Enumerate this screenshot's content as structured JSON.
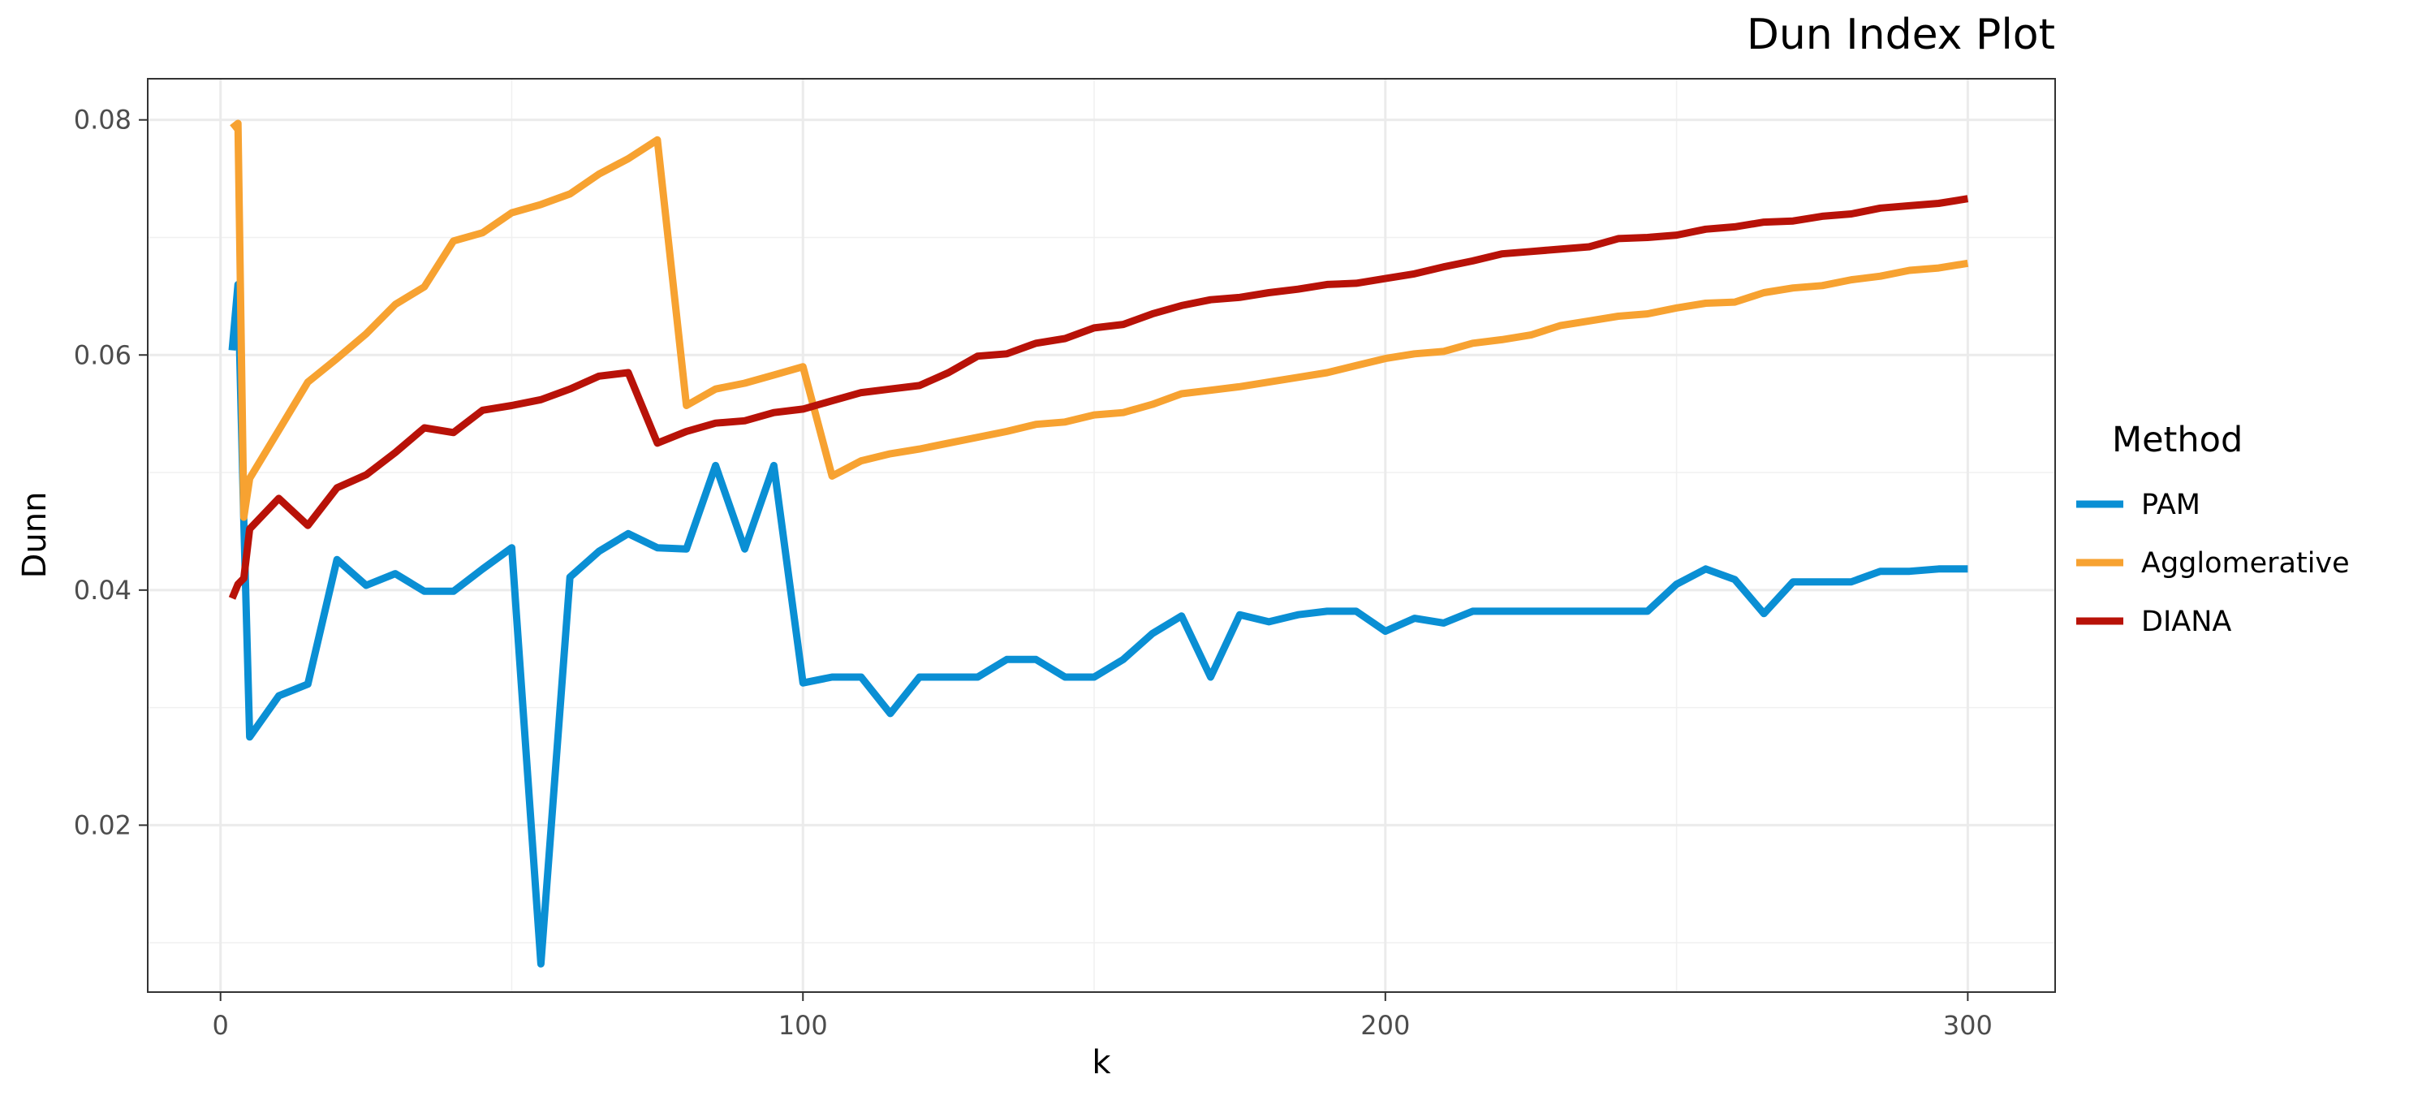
{
  "chart_data": {
    "type": "line",
    "title": "Dun Index Plot",
    "xlabel": "k",
    "ylabel": "Dunn",
    "xlim": [
      -12.5,
      315
    ],
    "ylim": [
      0.0058,
      0.0835
    ],
    "x_ticks": [
      0,
      100,
      200,
      300
    ],
    "x_tick_labels": [
      "0",
      "100",
      "200",
      "300"
    ],
    "y_ticks": [
      0.02,
      0.04,
      0.06,
      0.08
    ],
    "y_tick_labels": [
      "0.02",
      "0.04",
      "0.06",
      "0.08"
    ],
    "grid": true,
    "legend": {
      "title": "Method",
      "position": "right"
    },
    "series": [
      {
        "name": "PAM",
        "color": "#0a8fd4",
        "x": [
          2,
          3,
          4,
          5,
          10,
          15,
          20,
          25,
          30,
          35,
          40,
          45,
          50,
          55,
          60,
          65,
          70,
          75,
          80,
          85,
          90,
          95,
          100,
          105,
          110,
          115,
          120,
          125,
          130,
          135,
          140,
          145,
          150,
          155,
          160,
          165,
          170,
          175,
          180,
          185,
          190,
          195,
          200,
          205,
          210,
          215,
          220,
          225,
          230,
          235,
          240,
          245,
          250,
          255,
          260,
          265,
          270,
          275,
          280,
          285,
          290,
          295,
          300
        ],
        "y": [
          0.0604,
          0.066,
          0.0458,
          0.0275,
          0.031,
          0.032,
          0.0426,
          0.0404,
          0.0414,
          0.0399,
          0.0399,
          0.0418,
          0.0436,
          0.0082,
          0.0411,
          0.0433,
          0.0448,
          0.0436,
          0.0435,
          0.0506,
          0.0435,
          0.0506,
          0.0321,
          0.0326,
          0.0326,
          0.0295,
          0.0326,
          0.0326,
          0.0326,
          0.0341,
          0.0341,
          0.0326,
          0.0326,
          0.0341,
          0.0363,
          0.0378,
          0.0326,
          0.0379,
          0.0373,
          0.0379,
          0.0382,
          0.0382,
          0.0365,
          0.0376,
          0.0372,
          0.0382,
          0.0382,
          0.0382,
          0.0382,
          0.0382,
          0.0382,
          0.0382,
          0.0405,
          0.0418,
          0.0409,
          0.038,
          0.0407,
          0.0407,
          0.0407,
          0.0416,
          0.0416,
          0.0418,
          0.0418
        ]
      },
      {
        "name": "Agglomerative",
        "color": "#f7a231",
        "x": [
          2,
          3,
          4,
          5,
          10,
          15,
          20,
          25,
          30,
          35,
          40,
          45,
          50,
          55,
          60,
          65,
          70,
          75,
          80,
          85,
          90,
          95,
          100,
          105,
          110,
          115,
          120,
          125,
          130,
          135,
          140,
          145,
          150,
          155,
          160,
          165,
          170,
          175,
          180,
          185,
          190,
          195,
          200,
          205,
          210,
          215,
          220,
          225,
          230,
          235,
          240,
          245,
          250,
          255,
          260,
          265,
          270,
          275,
          280,
          285,
          290,
          295,
          300
        ],
        "y": [
          0.0793,
          0.0797,
          0.0462,
          0.0495,
          0.0536,
          0.0577,
          0.0597,
          0.0618,
          0.0643,
          0.0658,
          0.0697,
          0.0704,
          0.0721,
          0.0728,
          0.0737,
          0.0754,
          0.0767,
          0.0783,
          0.0557,
          0.0571,
          0.0576,
          0.0583,
          0.059,
          0.0497,
          0.051,
          0.0516,
          0.052,
          0.0525,
          0.053,
          0.0535,
          0.0541,
          0.0543,
          0.0549,
          0.0551,
          0.0558,
          0.0567,
          0.057,
          0.0573,
          0.0577,
          0.0581,
          0.0585,
          0.0591,
          0.0597,
          0.0601,
          0.0603,
          0.061,
          0.0613,
          0.0617,
          0.0625,
          0.0629,
          0.0633,
          0.0635,
          0.064,
          0.0644,
          0.0645,
          0.0653,
          0.0657,
          0.0659,
          0.0664,
          0.0667,
          0.0672,
          0.0674,
          0.0678
        ]
      },
      {
        "name": "DIANA",
        "color": "#b81208",
        "x": [
          2,
          3,
          4,
          5,
          10,
          15,
          20,
          25,
          30,
          35,
          40,
          45,
          50,
          55,
          60,
          65,
          70,
          75,
          80,
          85,
          90,
          95,
          100,
          105,
          110,
          115,
          120,
          125,
          130,
          135,
          140,
          145,
          150,
          155,
          160,
          165,
          170,
          175,
          180,
          185,
          190,
          195,
          200,
          205,
          210,
          215,
          220,
          225,
          230,
          235,
          240,
          245,
          250,
          255,
          260,
          265,
          270,
          275,
          280,
          285,
          290,
          295,
          300
        ],
        "y": [
          0.0393,
          0.0405,
          0.041,
          0.0452,
          0.0478,
          0.0455,
          0.0487,
          0.0498,
          0.0517,
          0.0538,
          0.0534,
          0.0553,
          0.0557,
          0.0562,
          0.0571,
          0.0582,
          0.0585,
          0.0525,
          0.0535,
          0.0542,
          0.0544,
          0.0551,
          0.0554,
          0.0561,
          0.0568,
          0.0571,
          0.0574,
          0.0585,
          0.0599,
          0.0601,
          0.061,
          0.0614,
          0.0623,
          0.0626,
          0.0635,
          0.0642,
          0.0647,
          0.0649,
          0.0653,
          0.0656,
          0.066,
          0.0661,
          0.0665,
          0.0669,
          0.0675,
          0.068,
          0.0686,
          0.0688,
          0.069,
          0.0692,
          0.0699,
          0.07,
          0.0702,
          0.0707,
          0.0709,
          0.0713,
          0.0714,
          0.0718,
          0.072,
          0.0725,
          0.0727,
          0.0729,
          0.0733
        ]
      }
    ]
  }
}
